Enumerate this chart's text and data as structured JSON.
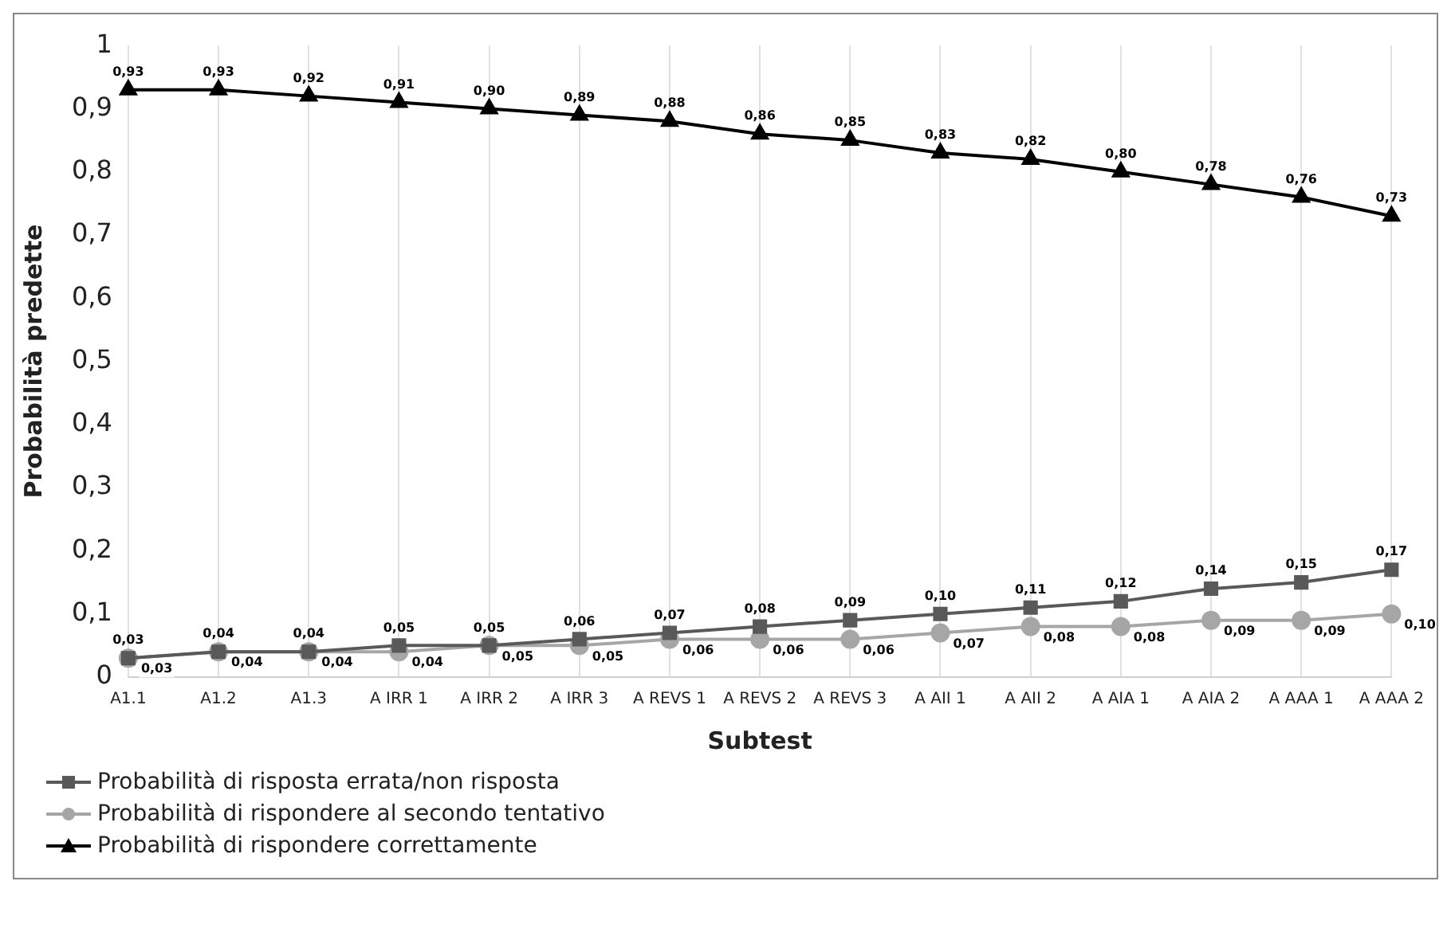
{
  "chart_data": {
    "type": "line",
    "xlabel": "Subtest",
    "ylabel": "Probabilità predette",
    "categories": [
      "A1.1",
      "A1.2",
      "A1.3",
      "A IRR 1",
      "A IRR 2",
      "A IRR 3",
      "A REVS 1",
      "A REVS 2",
      "A REVS 3",
      "A AII 1",
      "A AII 2",
      "A AIA 1",
      "A AIA 2",
      "A AAA 1",
      "A AAA 2"
    ],
    "series": [
      {
        "name": "Probabilità di risposta errata/non risposta",
        "color": "#595959",
        "marker": "square",
        "values": [
          0.03,
          0.04,
          0.04,
          0.05,
          0.05,
          0.06,
          0.07,
          0.08,
          0.09,
          0.1,
          0.11,
          0.12,
          0.14,
          0.15,
          0.17
        ],
        "value_labels": [
          "0,03",
          "0,04",
          "0,04",
          "0,05",
          "0,05",
          "0,06",
          "0,07",
          "0,08",
          "0,09",
          "0,10",
          "0,11",
          "0,12",
          "0,14",
          "0,15",
          "0,17"
        ]
      },
      {
        "name": "Probabilità di rispondere al secondo tentativo",
        "color": "#a6a6a6",
        "marker": "circle",
        "values": [
          0.03,
          0.04,
          0.04,
          0.04,
          0.05,
          0.05,
          0.06,
          0.06,
          0.06,
          0.07,
          0.08,
          0.08,
          0.09,
          0.09,
          0.1
        ],
        "value_labels": [
          "0,03",
          "0,04",
          "0,04",
          "0,04",
          "0,05",
          "0,05",
          "0,06",
          "0,06",
          "0,06",
          "0,07",
          "0,08",
          "0,08",
          "0,09",
          "0,09",
          "0,10"
        ]
      },
      {
        "name": "Probabilità di rispondere correttamente",
        "color": "#000000",
        "marker": "triangle",
        "values": [
          0.93,
          0.93,
          0.92,
          0.91,
          0.9,
          0.89,
          0.88,
          0.86,
          0.85,
          0.83,
          0.82,
          0.8,
          0.78,
          0.76,
          0.73
        ],
        "value_labels": [
          "0,93",
          "0,93",
          "0,92",
          "0,91",
          "0,90",
          "0,89",
          "0,88",
          "0,86",
          "0,85",
          "0,83",
          "0,82",
          "0,80",
          "0,78",
          "0,76",
          "0,73"
        ]
      }
    ],
    "ylim": [
      0,
      1
    ],
    "yticks": [
      0,
      {
        "value": 0.1,
        "label": "0,1"
      },
      {
        "value": 0.2,
        "label": "0,2"
      },
      {
        "value": 0.3,
        "label": "0,3"
      },
      {
        "value": 0.4,
        "label": "0,4"
      },
      {
        "value": 0.5,
        "label": "0,5"
      },
      {
        "value": 0.6,
        "label": "0,6"
      },
      {
        "value": 0.7,
        "label": "0,7"
      },
      {
        "value": 0.8,
        "label": "0,8"
      },
      {
        "value": 0.9,
        "label": "0,9"
      },
      1
    ],
    "grid": "x",
    "legend": "bottom"
  }
}
